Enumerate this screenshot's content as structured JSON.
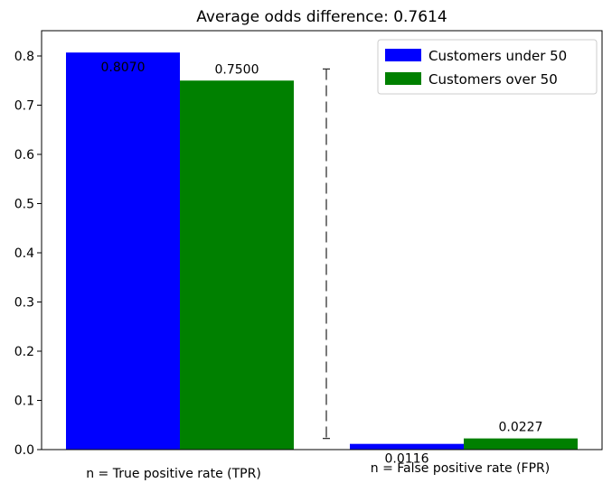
{
  "chart_data": {
    "type": "bar",
    "title": "Average odds difference: 0.7614",
    "categories": [
      "n = True positive rate (TPR)",
      "n = False positive rate (FPR)"
    ],
    "series": [
      {
        "name": "Customers under 50",
        "color": "#0000ff",
        "values": [
          0.807,
          0.0116
        ],
        "labels": [
          "0.8070",
          "0.0116"
        ]
      },
      {
        "name": "Customers over 50",
        "color": "#008000",
        "values": [
          0.75,
          0.0227
        ],
        "labels": [
          "0.7500",
          "0.0227"
        ]
      }
    ],
    "ylim": [
      0,
      0.85
    ],
    "yticks": [
      0.0,
      0.1,
      0.2,
      0.3,
      0.4,
      0.5,
      0.6,
      0.7,
      0.8
    ],
    "ytick_labels": [
      "0.0",
      "0.1",
      "0.2",
      "0.3",
      "0.4",
      "0.5",
      "0.6",
      "0.7",
      "0.8"
    ],
    "grid": false,
    "legend_position": "top-right",
    "annotation": {
      "type": "dashed-line",
      "y_top": 0.7735,
      "y_bottom": 0.0227
    }
  }
}
